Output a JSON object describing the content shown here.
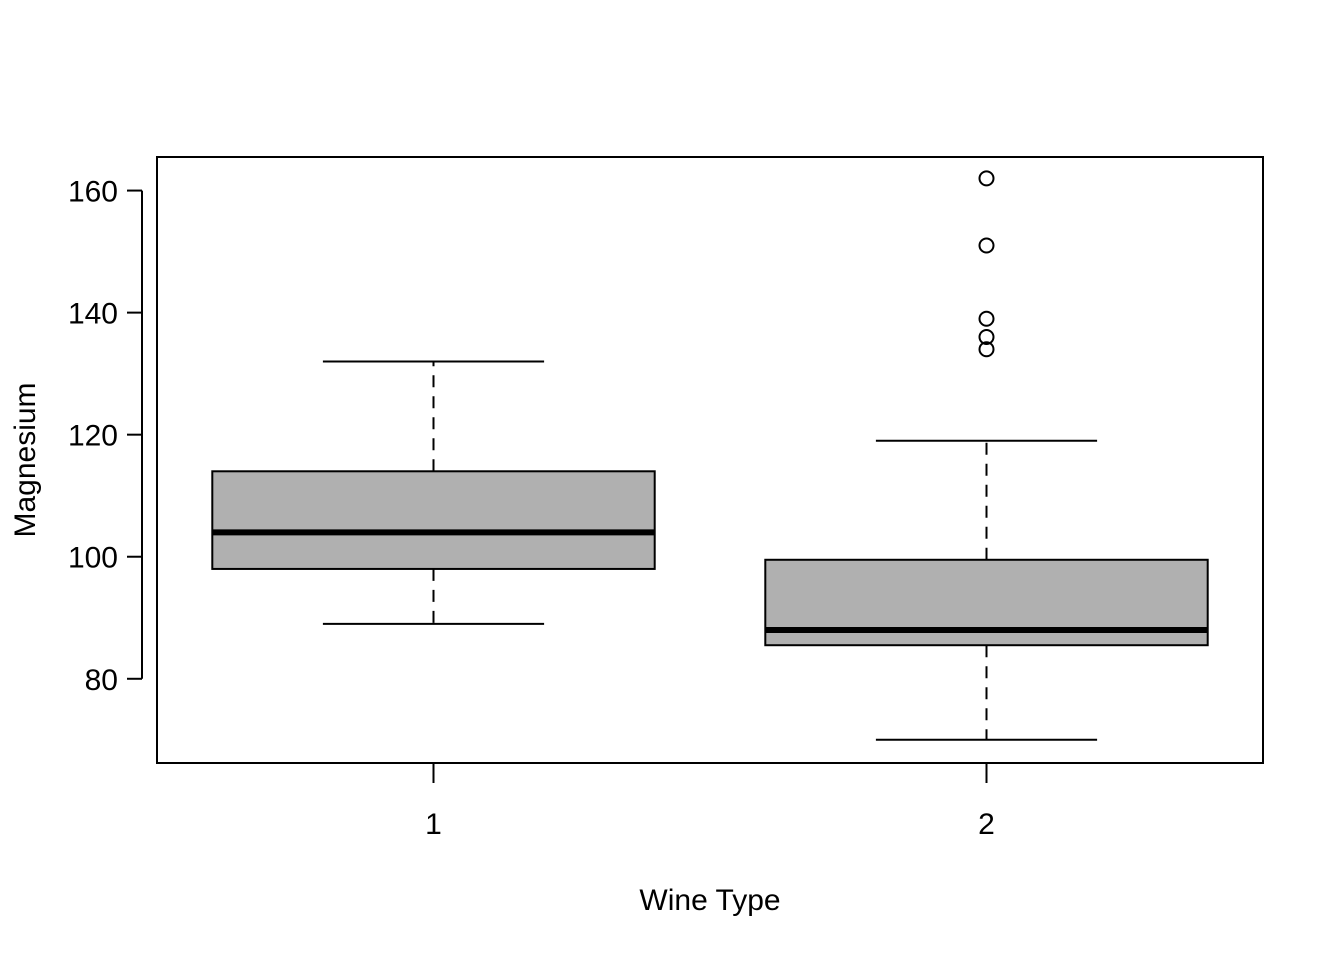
{
  "chart_data": {
    "type": "boxplot",
    "title": "",
    "xlabel": "Wine Type",
    "ylabel": "Magnesium",
    "categories": [
      "1",
      "2"
    ],
    "ylim": [
      66.2,
      165.5
    ],
    "yticks": [
      80,
      100,
      120,
      140,
      160
    ],
    "box_fill": "#b0b0b0",
    "grid": false,
    "series": [
      {
        "category": "1",
        "whisker_low": 89,
        "q1": 98,
        "median": 104,
        "q3": 114,
        "whisker_high": 132,
        "outliers": []
      },
      {
        "category": "2",
        "whisker_low": 70,
        "q1": 85.5,
        "median": 88,
        "q3": 99.5,
        "whisker_high": 119,
        "outliers": [
          134,
          136,
          139,
          151,
          162
        ]
      }
    ]
  }
}
